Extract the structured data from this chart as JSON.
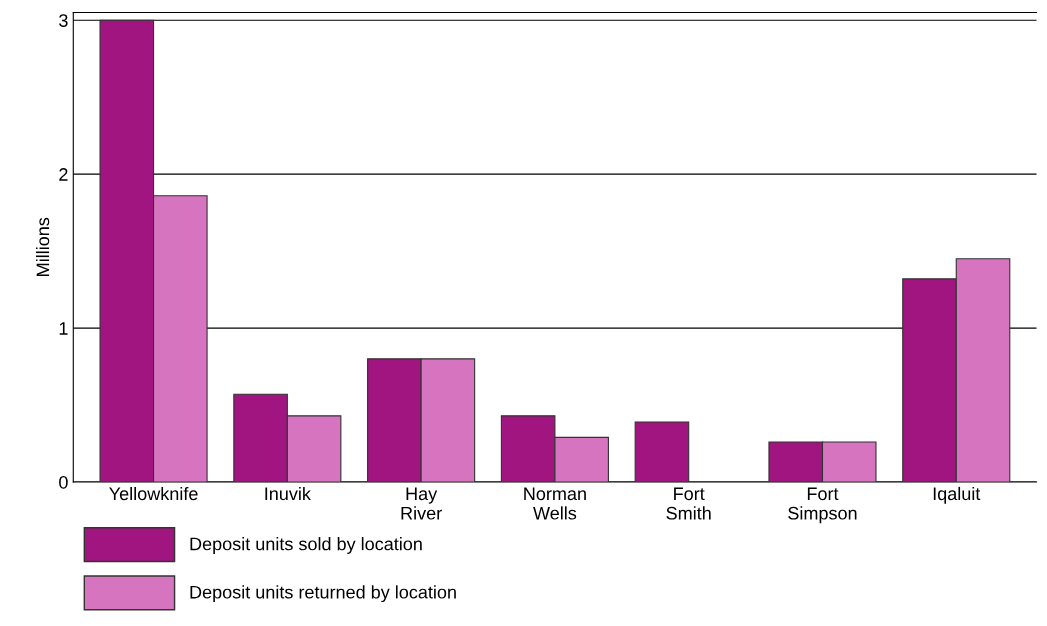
{
  "chart_data": {
    "type": "bar",
    "ylabel": "Millions",
    "categories": [
      "Yellowknife",
      "Inuvik",
      "Hay\nRiver",
      "Norman\nWells",
      "Fort\nSmith",
      "Fort\nSimpson",
      "Iqaluit"
    ],
    "series": [
      {
        "name": "Deposit units sold by location",
        "color": "#a0157f",
        "values": [
          3.0,
          0.57,
          0.8,
          0.43,
          0.39,
          0.26,
          1.32
        ]
      },
      {
        "name": "Deposit units returned by location",
        "color": "#d774c0",
        "values": [
          1.86,
          0.43,
          0.8,
          0.29,
          null,
          0.26,
          1.45
        ]
      }
    ],
    "ylim": [
      0,
      3.05
    ],
    "yticks": [
      0,
      1,
      2,
      3
    ],
    "grid": "y",
    "legend": "bottom"
  }
}
